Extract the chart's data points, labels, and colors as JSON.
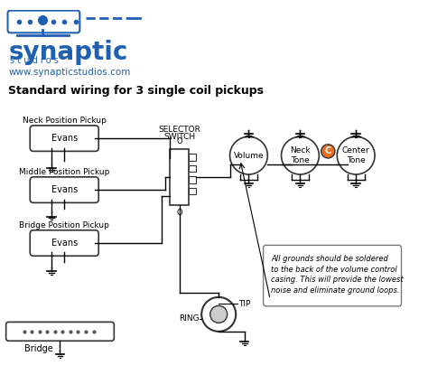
{
  "title": "Standard wiring for 3 single coil pickups",
  "logo_text_synaptic": "synaptic",
  "logo_text_studios": "s t u d i o s",
  "logo_url": "www.synapticstudios.com",
  "bg_color": "#ffffff",
  "text_color": "#000000",
  "blue_color": "#2060b0",
  "wire_color": "#000000",
  "pickup_labels": [
    "Neck Position Pickup",
    "Middle Position Pickup",
    "Bridge Position Pickup"
  ],
  "pickup_brand": "Evans",
  "bridge_label": "Bridge",
  "selector_label_1": "SELECTOR",
  "selector_label_2": "SWITCH",
  "pot_label_0": "Volume",
  "pot_label_1": "Neck\nTone",
  "pot_label_2": "Center\nTone",
  "tip_label": "TIP",
  "ring_label": "RING",
  "note_text": "All grounds should be soldered\nto the back of the volume control\ncasing. This will provide the lowest\nnoise and eliminate ground loops.",
  "cap_label": "C",
  "cap_color": "#e87020"
}
